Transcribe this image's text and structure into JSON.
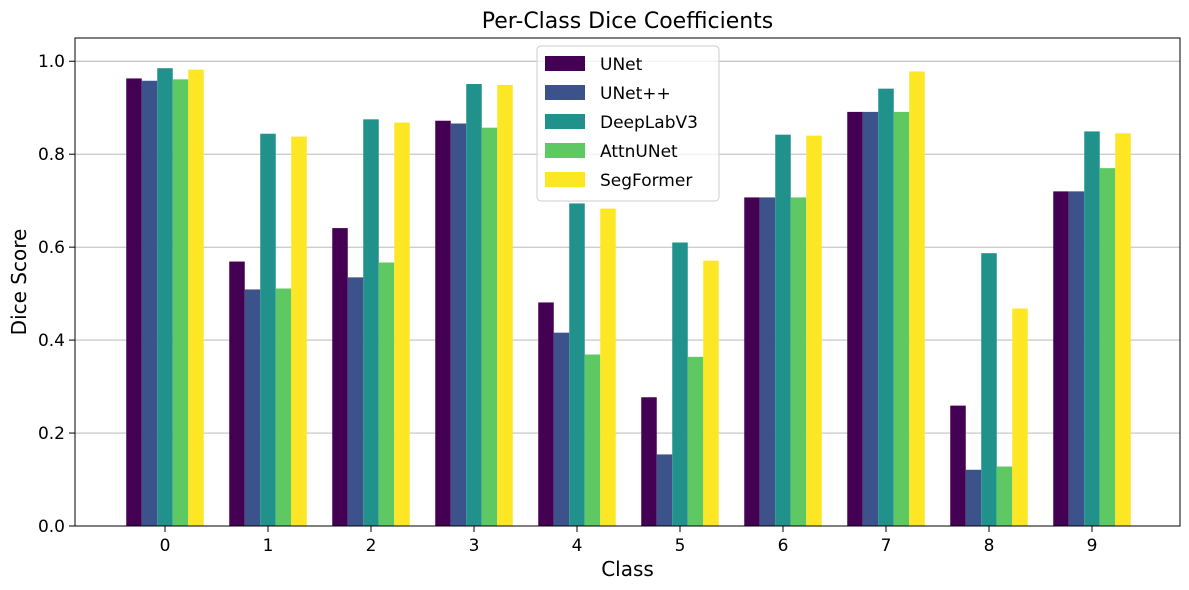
{
  "chart_data": {
    "type": "bar",
    "title": "Per-Class Dice Coefficients",
    "xlabel": "Class",
    "ylabel": "Dice Score",
    "categories": [
      "0",
      "1",
      "2",
      "3",
      "4",
      "5",
      "6",
      "7",
      "8",
      "9"
    ],
    "ylim": [
      0,
      1.05
    ],
    "yticks": [
      0.0,
      0.2,
      0.4,
      0.6,
      0.8,
      1.0
    ],
    "ytick_labels": [
      "0.0",
      "0.2",
      "0.4",
      "0.6",
      "0.8",
      "1.0"
    ],
    "grid": "horizontal",
    "legend_position": "top-center",
    "series": [
      {
        "name": "UNet",
        "color": "#440154",
        "values": [
          0.963,
          0.569,
          0.641,
          0.872,
          0.481,
          0.277,
          0.707,
          0.891,
          0.259,
          0.72
        ]
      },
      {
        "name": "UNet++",
        "color": "#3b528b",
        "values": [
          0.958,
          0.509,
          0.535,
          0.866,
          0.416,
          0.154,
          0.707,
          0.891,
          0.121,
          0.72
        ]
      },
      {
        "name": "DeepLabV3",
        "color": "#21918c",
        "values": [
          0.985,
          0.844,
          0.875,
          0.951,
          0.694,
          0.61,
          0.842,
          0.941,
          0.587,
          0.849
        ]
      },
      {
        "name": "AttnUNet",
        "color": "#5ec962",
        "values": [
          0.961,
          0.511,
          0.567,
          0.857,
          0.369,
          0.364,
          0.707,
          0.891,
          0.128,
          0.77
        ]
      },
      {
        "name": "SegFormer",
        "color": "#fde725",
        "values": [
          0.982,
          0.838,
          0.868,
          0.949,
          0.683,
          0.571,
          0.84,
          0.978,
          0.468,
          0.845
        ]
      }
    ]
  }
}
